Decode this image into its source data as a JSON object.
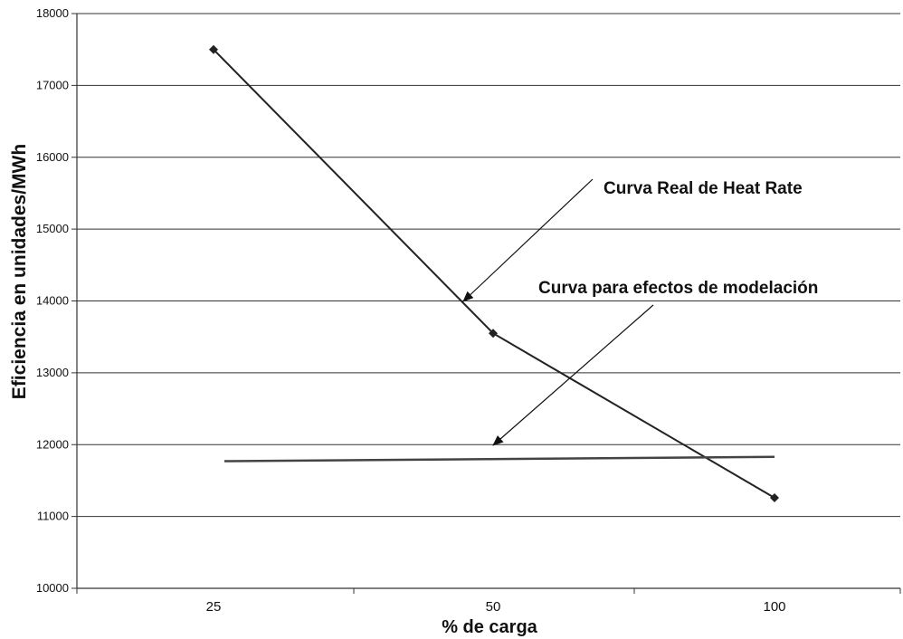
{
  "chart_data": {
    "type": "line",
    "categories": [
      "25",
      "50",
      "100"
    ],
    "xlabel": "% de carga",
    "ylabel": "Eficiencia en unidades/MWh",
    "ylim": [
      10000,
      18000
    ],
    "yticks": [
      10000,
      11000,
      12000,
      13000,
      14000,
      15000,
      16000,
      17000,
      18000
    ],
    "grid": "horizontal",
    "series": [
      {
        "values": [
          17500,
          13550,
          11260
        ],
        "color": "#222222",
        "marker": "diamond"
      },
      {
        "values": [
          11770,
          11800,
          11830
        ],
        "color": "#444444",
        "marker": "none"
      }
    ],
    "annotations": [
      {
        "text": "Curva Real de Heat Rate",
        "target_series": 0
      },
      {
        "text": "Curva para efectos de modelación",
        "target_series": 1
      }
    ]
  }
}
